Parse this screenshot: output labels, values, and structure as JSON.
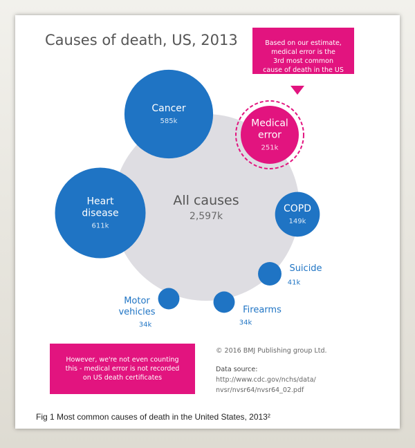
{
  "chart_data": {
    "type": "bubble",
    "title": "Causes of death, US, 2013",
    "categories": [
      "All causes",
      "Heart disease",
      "Cancer",
      "Medical error",
      "COPD",
      "Suicide",
      "Firearms",
      "Motor vehicles"
    ],
    "values": [
      2597,
      611,
      585,
      251,
      149,
      41,
      34,
      34
    ],
    "value_labels": [
      "2,597k",
      "611k",
      "585k",
      "251k",
      "149k",
      "41k",
      "34k",
      "34k"
    ],
    "colors": [
      "#dedde2",
      "#1f74c4",
      "#1f74c4",
      "#e2147f",
      "#1f74c4",
      "#1f74c4",
      "#1f74c4",
      "#1f74c4"
    ],
    "callout": [
      "Based on our estimate,",
      "medical error is the",
      "3rd most common",
      "cause of death in the US"
    ],
    "note": [
      "However, we're not even counting",
      "this - medical error is not recorded",
      "on US death certificates"
    ],
    "copyright": "© 2016 BMJ Publishing group Ltd.",
    "source_label": "Data source:",
    "source_url": [
      "http://www.cdc.gov/nchs/data/",
      "nvsr/nvsr64/nvsr64_02.pdf"
    ],
    "caption": "Fig 1 Most common causes of death in the United States, 2013²"
  }
}
